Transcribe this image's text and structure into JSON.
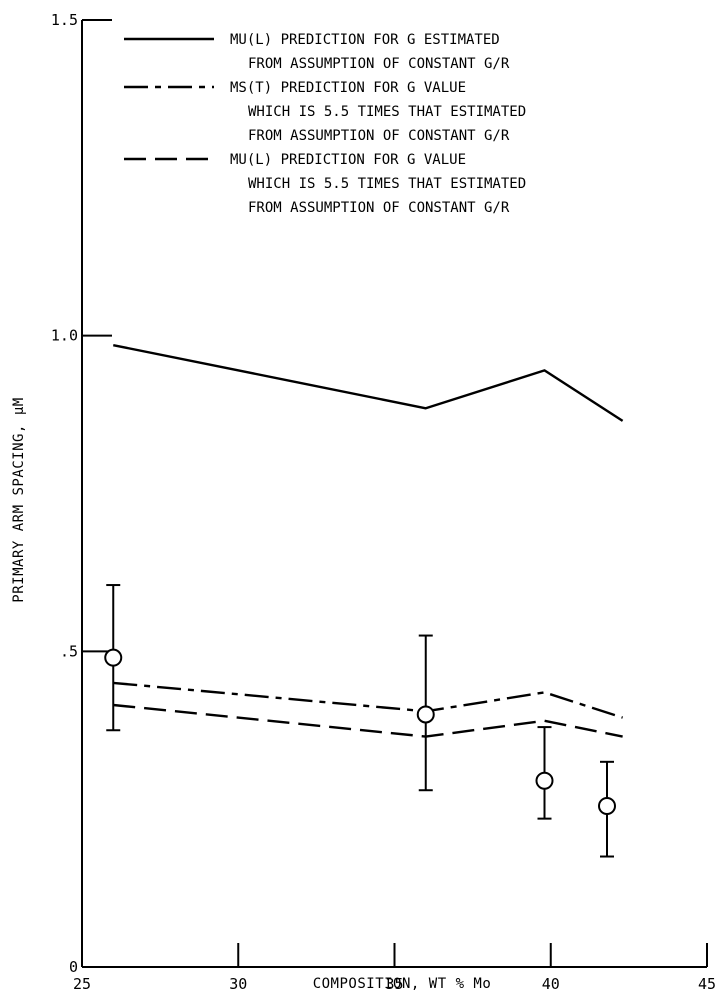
{
  "chart_data": {
    "type": "line",
    "title": "",
    "xlabel": "COMPOSITION, WT % Mo",
    "ylabel": "PRIMARY ARM SPACING, μM",
    "xlim": [
      25,
      45
    ],
    "ylim": [
      0,
      1.5
    ],
    "x_ticks": [
      25,
      30,
      35,
      40,
      45
    ],
    "x_tick_labels": [
      "25",
      "30",
      "35",
      "40",
      "45"
    ],
    "y_ticks": [
      0,
      0.5,
      1.0,
      1.5
    ],
    "y_tick_labels": [
      "0",
      ".5",
      "1.0",
      "1.5"
    ],
    "grid": false,
    "legend_position": "top",
    "series": [
      {
        "name": "MU(L) PREDICTION FOR G ESTIMATED FROM ASSUMPTION OF CONSTANT G/R",
        "legend_lines": [
          "MU(L) PREDICTION FOR  G  ESTIMATED",
          "FROM ASSUMPTION OF CONSTANT  G/R"
        ],
        "style": "solid",
        "x": [
          26,
          36,
          39.8,
          42.3
        ],
        "y": [
          0.985,
          0.885,
          0.945,
          0.865
        ]
      },
      {
        "name": "MS(T) PREDICTION FOR G VALUE WHICH IS 5.5 TIMES THAT ESTIMATED FROM ASSUMPTION OF CONSTANT G/R",
        "legend_lines": [
          "MS(T) PREDICTION FOR  G  VALUE",
          "WHICH IS 5.5 TIMES THAT ESTIMATED",
          "FROM ASSUMPTION OF CONSTANT  G/R"
        ],
        "style": "dash-dot",
        "x": [
          26,
          36,
          39.8,
          42.3
        ],
        "y": [
          0.45,
          0.405,
          0.435,
          0.395
        ]
      },
      {
        "name": "MU(L) PREDICTION FOR G VALUE WHICH IS 5.5 TIMES THAT ESTIMATED FROM ASSUMPTION OF CONSTANT G/R",
        "legend_lines": [
          "MU(L) PREDICTION FOR  G  VALUE",
          "WHICH IS 5.5 TIMES THAT ESTIMATED",
          "FROM ASSUMPTION OF CONSTANT  G/R"
        ],
        "style": "dashed",
        "x": [
          26,
          36,
          39.8,
          42.3
        ],
        "y": [
          0.415,
          0.365,
          0.39,
          0.365
        ]
      }
    ],
    "measured": {
      "type": "scatter-errorbar",
      "marker": "open-circle",
      "x": [
        26,
        36,
        39.8,
        41.8
      ],
      "y": [
        0.49,
        0.4,
        0.295,
        0.255
      ],
      "y_low": [
        0.375,
        0.28,
        0.235,
        0.175
      ],
      "y_high": [
        0.605,
        0.525,
        0.38,
        0.325
      ]
    }
  }
}
